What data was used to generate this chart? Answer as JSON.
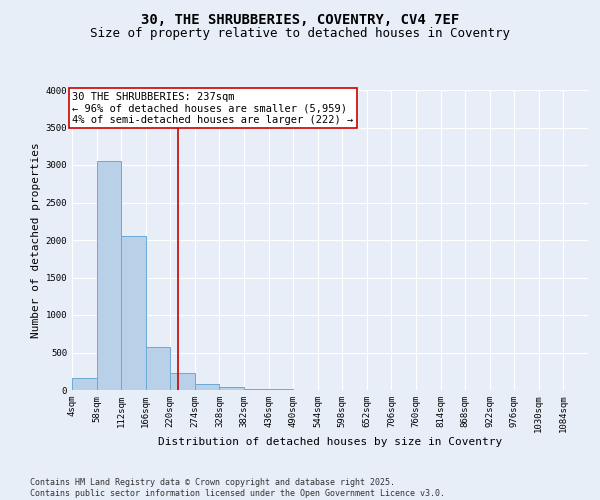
{
  "title_line1": "30, THE SHRUBBERIES, COVENTRY, CV4 7EF",
  "title_line2": "Size of property relative to detached houses in Coventry",
  "xlabel": "Distribution of detached houses by size in Coventry",
  "ylabel": "Number of detached properties",
  "bar_left_edges": [
    4,
    58,
    112,
    166,
    220,
    274,
    328,
    382,
    436,
    490,
    544,
    598,
    652,
    706,
    760,
    814,
    868,
    922,
    976,
    1030
  ],
  "bar_heights": [
    155,
    3060,
    2060,
    580,
    230,
    85,
    40,
    18,
    10,
    6,
    4,
    3,
    2,
    2,
    1,
    1,
    1,
    1,
    1,
    1
  ],
  "bin_width": 54,
  "bar_color": "#b8d0e8",
  "bar_edge_color": "#6aaad4",
  "property_value": 237,
  "vline_color": "#cc0000",
  "annotation_text": "30 THE SHRUBBERIES: 237sqm\n← 96% of detached houses are smaller (5,959)\n4% of semi-detached houses are larger (222) →",
  "annotation_box_color": "#ffffff",
  "annotation_box_edge": "#cc0000",
  "ylim": [
    0,
    4000
  ],
  "tick_labels": [
    "4sqm",
    "58sqm",
    "112sqm",
    "166sqm",
    "220sqm",
    "274sqm",
    "328sqm",
    "382sqm",
    "436sqm",
    "490sqm",
    "544sqm",
    "598sqm",
    "652sqm",
    "706sqm",
    "760sqm",
    "814sqm",
    "868sqm",
    "922sqm",
    "976sqm",
    "1030sqm",
    "1084sqm"
  ],
  "tick_positions": [
    4,
    58,
    112,
    166,
    220,
    274,
    328,
    382,
    436,
    490,
    544,
    598,
    652,
    706,
    760,
    814,
    868,
    922,
    976,
    1030,
    1084
  ],
  "background_color": "#e8eef8",
  "grid_color": "#ffffff",
  "footer_text": "Contains HM Land Registry data © Crown copyright and database right 2025.\nContains public sector information licensed under the Open Government Licence v3.0.",
  "title_fontsize": 10,
  "subtitle_fontsize": 9,
  "axis_label_fontsize": 8,
  "tick_fontsize": 6.5,
  "annotation_fontsize": 7.5,
  "footer_fontsize": 6,
  "ytick_values": [
    0,
    500,
    1000,
    1500,
    2000,
    2500,
    3000,
    3500,
    4000
  ]
}
